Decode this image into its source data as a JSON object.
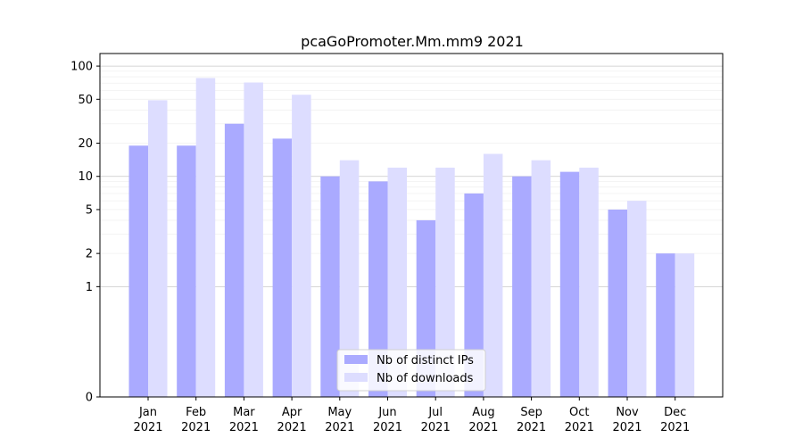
{
  "chart_data": {
    "type": "bar",
    "title": "pcaGoPromoter.Mm.mm9 2021",
    "xlabel": "",
    "ylabel": "",
    "yscale": "symlog",
    "ylim": [
      0,
      130
    ],
    "yticks": [
      0,
      1,
      2,
      5,
      10,
      20,
      50,
      100
    ],
    "ytick_labels": [
      "0",
      "1",
      "2",
      "5",
      "10",
      "20",
      "50",
      "100"
    ],
    "categories": [
      "Jan",
      "Feb",
      "Mar",
      "Apr",
      "May",
      "Jun",
      "Jul",
      "Aug",
      "Sep",
      "Oct",
      "Nov",
      "Dec"
    ],
    "category_sublabel": "2021",
    "series": [
      {
        "name": "Nb of distinct IPs",
        "color": "#aaaaff",
        "values": [
          19,
          19,
          30,
          22,
          10,
          9,
          4,
          7,
          10,
          11,
          5,
          2
        ]
      },
      {
        "name": "Nb of downloads",
        "color": "#ddddff",
        "values": [
          49,
          78,
          71,
          55,
          14,
          12,
          12,
          16,
          14,
          12,
          6,
          2
        ]
      }
    ],
    "grid": true,
    "legend_position": "bottom-center"
  }
}
